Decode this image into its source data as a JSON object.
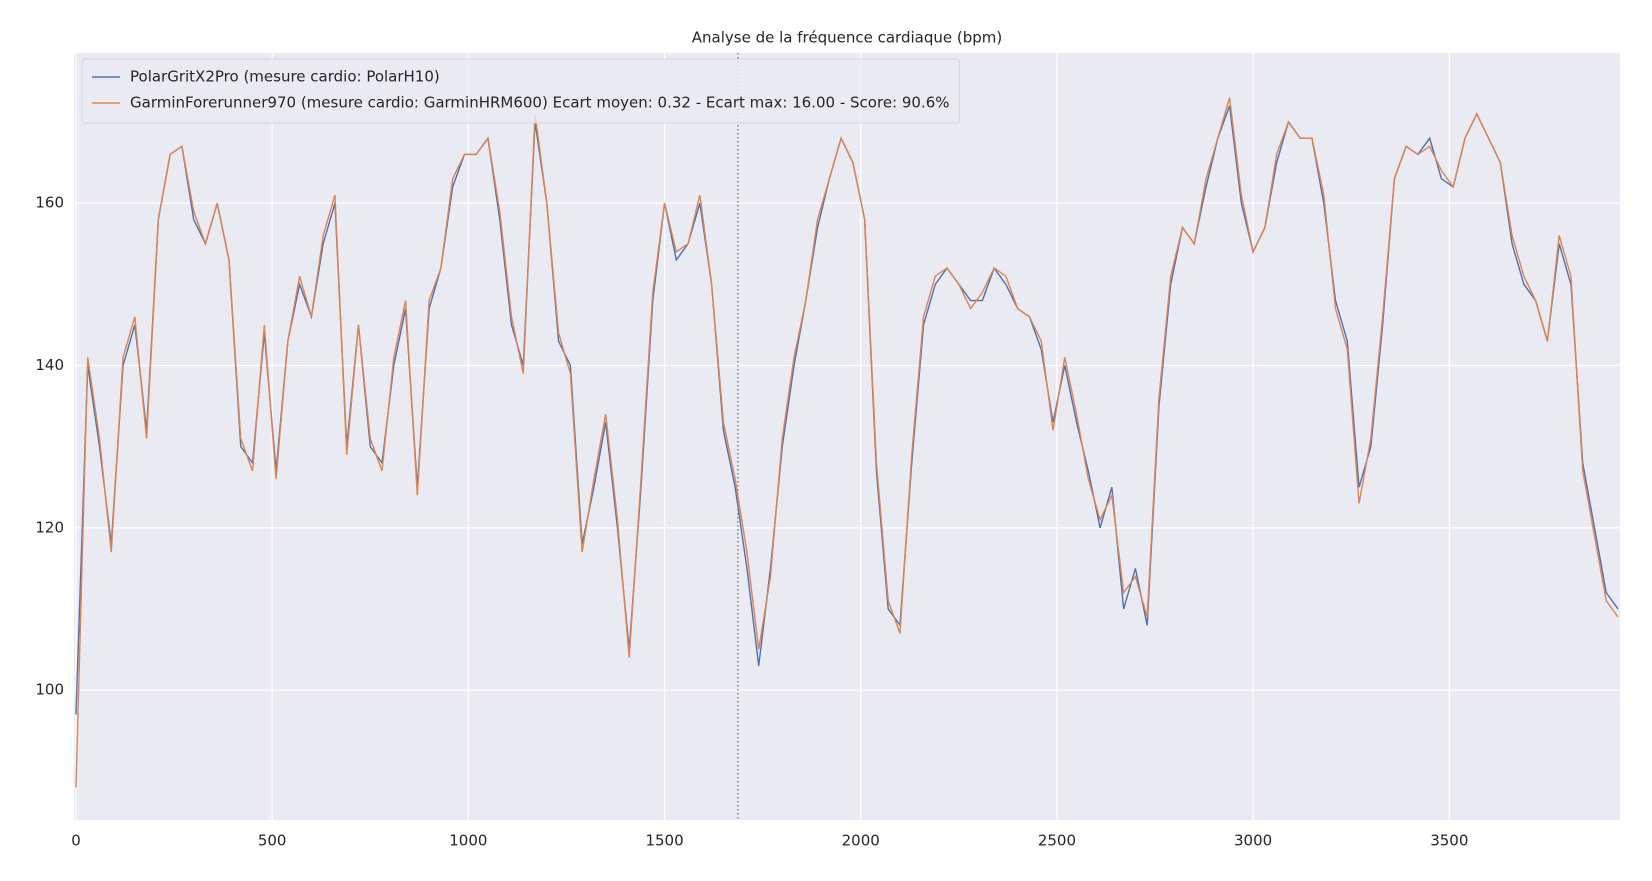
{
  "chart_data": {
    "type": "line",
    "title": "Analyse de la fréquence cardiaque (bpm)",
    "x": [
      0,
      30,
      60,
      90,
      120,
      150,
      180,
      210,
      240,
      270,
      300,
      330,
      360,
      390,
      420,
      450,
      480,
      510,
      540,
      570,
      600,
      630,
      660,
      690,
      720,
      750,
      780,
      810,
      840,
      870,
      900,
      930,
      960,
      990,
      1020,
      1050,
      1080,
      1110,
      1140,
      1170,
      1200,
      1230,
      1260,
      1290,
      1320,
      1350,
      1380,
      1410,
      1440,
      1470,
      1500,
      1530,
      1560,
      1590,
      1620,
      1650,
      1680,
      1710,
      1740,
      1770,
      1800,
      1830,
      1860,
      1890,
      1920,
      1950,
      1980,
      2010,
      2040,
      2070,
      2100,
      2130,
      2160,
      2190,
      2220,
      2250,
      2280,
      2310,
      2340,
      2370,
      2400,
      2430,
      2460,
      2490,
      2520,
      2550,
      2580,
      2610,
      2640,
      2670,
      2700,
      2730,
      2760,
      2790,
      2820,
      2850,
      2880,
      2910,
      2940,
      2970,
      3000,
      3030,
      3060,
      3090,
      3120,
      3150,
      3180,
      3210,
      3240,
      3270,
      3300,
      3330,
      3360,
      3390,
      3420,
      3450,
      3480,
      3510,
      3540,
      3570,
      3600,
      3630,
      3660,
      3690,
      3720,
      3750,
      3780,
      3810,
      3840,
      3870,
      3900,
      3930
    ],
    "series": [
      {
        "name": "PolarGritX2Pro (mesure cardio: PolarH10)",
        "color": "#4c72b0",
        "values": [
          97,
          140,
          130,
          118,
          140,
          145,
          132,
          158,
          166,
          167,
          158,
          155,
          160,
          153,
          130,
          128,
          144,
          127,
          143,
          150,
          146,
          155,
          160,
          130,
          145,
          130,
          128,
          140,
          147,
          125,
          147,
          152,
          162,
          166,
          166,
          168,
          158,
          145,
          140,
          170,
          160,
          143,
          140,
          118,
          125,
          133,
          120,
          105,
          125,
          148,
          160,
          153,
          155,
          160,
          150,
          132,
          125,
          115,
          103,
          115,
          130,
          140,
          148,
          157,
          163,
          168,
          165,
          158,
          127,
          110,
          108,
          128,
          145,
          150,
          152,
          150,
          148,
          148,
          152,
          150,
          147,
          146,
          142,
          133,
          140,
          133,
          127,
          120,
          125,
          110,
          115,
          108,
          135,
          150,
          157,
          155,
          162,
          168,
          172,
          160,
          154,
          157,
          165,
          170,
          168,
          168,
          160,
          148,
          143,
          125,
          130,
          145,
          163,
          167,
          166,
          168,
          163,
          162,
          168,
          171,
          168,
          165,
          155,
          150,
          148,
          143,
          155,
          150,
          128,
          120,
          112,
          110
        ]
      },
      {
        "name": "GarminForerunner970 (mesure cardio: GarminHRM600) Ecart moyen: 0.32 - Ecart max: 16.00 - Score: 90.6%",
        "color": "#dd8452",
        "values": [
          88,
          141,
          131,
          117,
          141,
          146,
          131,
          158,
          166,
          167,
          159,
          155,
          160,
          153,
          131,
          127,
          145,
          126,
          143,
          151,
          146,
          156,
          161,
          129,
          145,
          131,
          127,
          141,
          148,
          124,
          148,
          152,
          163,
          166,
          166,
          168,
          159,
          146,
          139,
          171,
          160,
          144,
          139,
          117,
          126,
          134,
          121,
          104,
          126,
          149,
          160,
          154,
          155,
          161,
          150,
          133,
          126,
          117,
          105,
          114,
          131,
          141,
          148,
          158,
          163,
          168,
          165,
          158,
          128,
          111,
          107,
          129,
          146,
          151,
          152,
          150,
          147,
          149,
          152,
          151,
          147,
          146,
          143,
          132,
          141,
          134,
          126,
          121,
          124,
          112,
          114,
          109,
          136,
          151,
          157,
          155,
          163,
          168,
          173,
          161,
          154,
          157,
          166,
          170,
          168,
          168,
          161,
          147,
          142,
          123,
          131,
          146,
          163,
          167,
          166,
          167,
          164,
          162,
          168,
          171,
          168,
          165,
          156,
          151,
          148,
          143,
          156,
          151,
          127,
          119,
          111,
          109
        ]
      }
    ],
    "xlim": [
      -5,
      3935
    ],
    "ylim": [
      84,
      178.5
    ],
    "xticks": [
      0,
      500,
      1000,
      1500,
      2000,
      2500,
      3000,
      3500
    ],
    "yticks": [
      100,
      120,
      140,
      160
    ],
    "vline": 1687,
    "grid": true,
    "legend": "upper left"
  }
}
